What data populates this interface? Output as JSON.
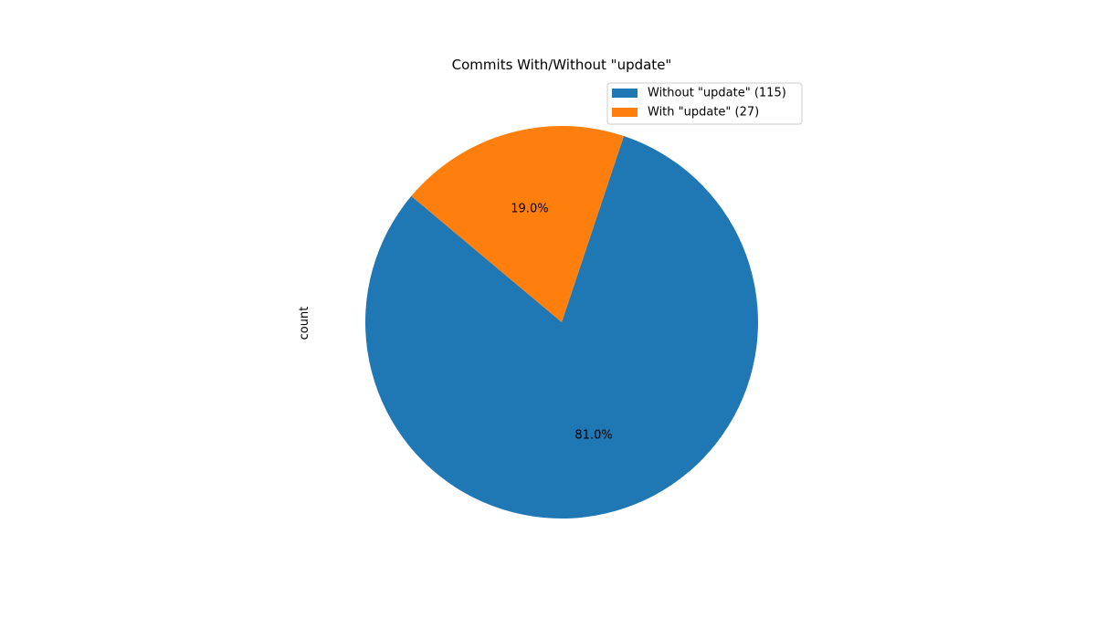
{
  "chart_data": {
    "type": "pie",
    "title": "Commits With/Without \"update\"",
    "ylabel": "count",
    "slices": [
      {
        "label": "Without \"update\"",
        "value": 115,
        "percent": "81.0%",
        "legend": "Without \"update\" (115)",
        "color": "#1f77b4"
      },
      {
        "label": "With \"update\"",
        "value": 27,
        "percent": "19.0%",
        "legend": "With \"update\" (27)",
        "color": "#ff7f0e"
      }
    ],
    "start_angle_deg": 140,
    "direction": "counterclockwise",
    "legend_position": "top-right"
  }
}
